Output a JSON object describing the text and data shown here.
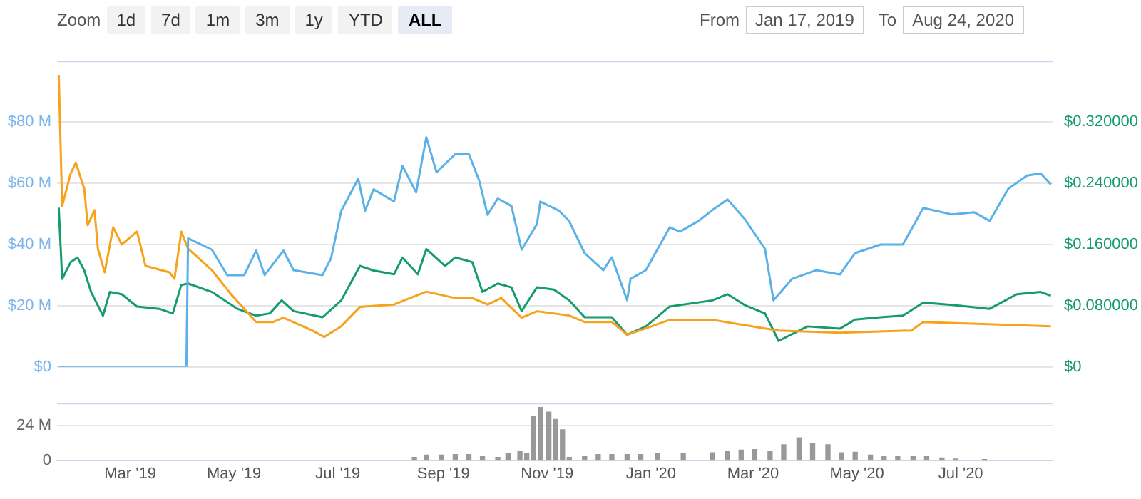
{
  "chart_data": [
    {
      "type": "line",
      "annotations": [
        "Zoom",
        "1d",
        "7d",
        "1m",
        "3m",
        "1y",
        "YTD",
        "ALL",
        "From",
        "Jan 17, 2019",
        "To",
        "Aug 24, 2020"
      ],
      "xlim": [
        "2019-01-17",
        "2020-08-24"
      ],
      "xticks": [
        {
          "value": "2019-03-01",
          "label": null
        },
        {
          "value": "2019-05-01",
          "label": null
        },
        {
          "value": "2019-07-01",
          "label": null
        },
        {
          "value": "2019-09-01",
          "label": null
        },
        {
          "value": "2019-11-01",
          "label": null
        },
        {
          "value": "2020-01-01",
          "label": null
        },
        {
          "value": "2020-03-01",
          "label": null
        },
        {
          "value": "2020-05-01",
          "label": null
        },
        {
          "value": "2020-07-01",
          "label": null
        }
      ],
      "ylim": [
        0,
        100
      ],
      "yticks": [
        {
          "value": 0,
          "label": "$0"
        },
        {
          "value": 20,
          "label": "$20 M"
        },
        {
          "value": 40,
          "label": "$40 M"
        },
        {
          "value": 60,
          "label": "$60 M"
        },
        {
          "value": 80,
          "label": "$80 M"
        }
      ],
      "y2lim": [
        0,
        0.4
      ],
      "y2ticks": [
        {
          "value": 0,
          "label": "$0"
        },
        {
          "value": 0.08,
          "label": "$0.080000"
        },
        {
          "value": 0.16,
          "label": "$0.160000"
        },
        {
          "value": 0.24,
          "label": "$0.240000"
        },
        {
          "value": 0.32,
          "label": "$0.320000"
        }
      ],
      "grid": "y",
      "legend": false,
      "marker": "none",
      "line_style": "solid",
      "tick_labels": "y",
      "series": [
        {
          "color": "#5ab1e8",
          "x": [
            "2019-01-18",
            "2019-04-03",
            "2019-04-04",
            "2019-04-18",
            "2019-04-27",
            "2019-05-07",
            "2019-05-14",
            "2019-05-19",
            "2019-05-30",
            "2019-06-05",
            "2019-06-22",
            "2019-06-27",
            "2019-07-03",
            "2019-07-13",
            "2019-07-17",
            "2019-07-22",
            "2019-08-03",
            "2019-08-08",
            "2019-08-16",
            "2019-08-22",
            "2019-08-28",
            "2019-09-08",
            "2019-09-16",
            "2019-09-22",
            "2019-09-27",
            "2019-10-03",
            "2019-10-11",
            "2019-10-17",
            "2019-10-26",
            "2019-10-28",
            "2019-11-08",
            "2019-11-14",
            "2019-11-23",
            "2019-12-04",
            "2019-12-09",
            "2019-12-18",
            "2019-12-20",
            "2019-12-29",
            "2020-01-12",
            "2020-01-18",
            "2020-01-29",
            "2020-02-06",
            "2020-02-15",
            "2020-02-25",
            "2020-03-08",
            "2020-03-13",
            "2020-03-24",
            "2020-04-07",
            "2020-04-21",
            "2020-04-30",
            "2020-05-15",
            "2020-05-28",
            "2020-06-09",
            "2020-06-26",
            "2020-07-09",
            "2020-07-18",
            "2020-07-29",
            "2020-08-09",
            "2020-08-17",
            "2020-08-23"
          ],
          "values": [
            0,
            0,
            42,
            38.3,
            30,
            30,
            38,
            30,
            38,
            31.6,
            30,
            35.5,
            51,
            61.5,
            51,
            58,
            54,
            65.7,
            57,
            75,
            63.6,
            69.5,
            69.5,
            61,
            49.7,
            55,
            52.6,
            38.3,
            46.7,
            54,
            51,
            47.6,
            37.2,
            31.6,
            35.8,
            21.8,
            28.8,
            31.6,
            45.6,
            44.2,
            47.7,
            51.2,
            54.7,
            48.4,
            38.6,
            21.8,
            28.8,
            31.6,
            30.2,
            37.2,
            40,
            40,
            51.9,
            49.8,
            50.5,
            47.7,
            58.2,
            62.5,
            63.2,
            59.6
          ]
        },
        {
          "color": "#f7a21b",
          "x": [
            "2019-01-18",
            "2019-01-20",
            "2019-01-25",
            "2019-01-28",
            "2019-02-02",
            "2019-02-04",
            "2019-02-08",
            "2019-02-10",
            "2019-02-14",
            "2019-02-19",
            "2019-02-24",
            "2019-03-05",
            "2019-03-10",
            "2019-03-24",
            "2019-03-27",
            "2019-03-31",
            "2019-04-04",
            "2019-04-18",
            "2019-04-29",
            "2019-05-14",
            "2019-05-24",
            "2019-05-30",
            "2019-06-16",
            "2019-06-23",
            "2019-07-03",
            "2019-07-14",
            "2019-08-03",
            "2019-08-22",
            "2019-09-08",
            "2019-09-18",
            "2019-09-27",
            "2019-10-05",
            "2019-10-17",
            "2019-10-26",
            "2019-11-14",
            "2019-11-23",
            "2019-12-09",
            "2019-12-18",
            "2019-12-29",
            "2020-01-12",
            "2020-02-06",
            "2020-03-08",
            "2020-03-16",
            "2020-04-21",
            "2020-06-02",
            "2020-06-09",
            "2020-07-17",
            "2020-08-23"
          ],
          "values": [
            95.4,
            52.6,
            63.2,
            66.7,
            58.2,
            46.3,
            51.2,
            38.6,
            30.9,
            45.6,
            40,
            44.2,
            33,
            30.9,
            28.8,
            44.2,
            38.6,
            31.6,
            23.9,
            14.7,
            14.7,
            16.1,
            11.9,
            9.8,
            13.3,
            19.6,
            20.4,
            24.6,
            22.5,
            22.5,
            20.4,
            22.5,
            16.1,
            18.2,
            16.8,
            14.7,
            14.7,
            10.5,
            12.6,
            15.4,
            15.4,
            12.6,
            11.9,
            11.2,
            11.9,
            14.7,
            14,
            13.3
          ]
        },
        {
          "color": "#159b6c",
          "axis": "y2",
          "x": [
            "2019-01-18",
            "2019-01-20",
            "2019-01-25",
            "2019-01-29",
            "2019-02-02",
            "2019-02-06",
            "2019-02-13",
            "2019-02-17",
            "2019-02-24",
            "2019-03-05",
            "2019-03-18",
            "2019-03-26",
            "2019-03-31",
            "2019-04-04",
            "2019-04-18",
            "2019-05-03",
            "2019-05-14",
            "2019-05-22",
            "2019-05-29",
            "2019-06-05",
            "2019-06-22",
            "2019-07-03",
            "2019-07-14",
            "2019-07-22",
            "2019-08-03",
            "2019-08-08",
            "2019-08-17",
            "2019-08-22",
            "2019-09-02",
            "2019-09-08",
            "2019-09-18",
            "2019-09-24",
            "2019-10-03",
            "2019-10-11",
            "2019-10-17",
            "2019-10-26",
            "2019-11-05",
            "2019-11-14",
            "2019-11-23",
            "2019-12-09",
            "2019-12-18",
            "2019-12-29",
            "2020-01-12",
            "2020-02-06",
            "2020-02-15",
            "2020-02-25",
            "2020-03-08",
            "2020-03-16",
            "2020-04-02",
            "2020-04-21",
            "2020-04-30",
            "2020-05-15",
            "2020-05-28",
            "2020-06-09",
            "2020-06-26",
            "2020-07-18",
            "2020-08-03",
            "2020-08-17",
            "2020-08-23"
          ],
          "values": [
            0.208,
            0.115,
            0.137,
            0.143,
            0.126,
            0.098,
            0.067,
            0.098,
            0.095,
            0.079,
            0.076,
            0.07,
            0.107,
            0.109,
            0.098,
            0.076,
            0.067,
            0.07,
            0.087,
            0.073,
            0.065,
            0.087,
            0.132,
            0.126,
            0.121,
            0.143,
            0.121,
            0.154,
            0.132,
            0.143,
            0.137,
            0.098,
            0.109,
            0.104,
            0.073,
            0.104,
            0.101,
            0.087,
            0.065,
            0.065,
            0.042,
            0.053,
            0.079,
            0.087,
            0.095,
            0.081,
            0.07,
            0.034,
            0.053,
            0.05,
            0.062,
            0.065,
            0.067,
            0.084,
            0.081,
            0.076,
            0.095,
            0.098,
            0.093
          ]
        }
      ]
    },
    {
      "type": "bar",
      "xlim": [
        "2019-01-17",
        "2020-08-24"
      ],
      "xticks": [
        {
          "value": "2019-03-01",
          "label": "Mar '19"
        },
        {
          "value": "2019-05-01",
          "label": "May '19"
        },
        {
          "value": "2019-07-01",
          "label": "Jul '19"
        },
        {
          "value": "2019-09-01",
          "label": "Sep '19"
        },
        {
          "value": "2019-11-01",
          "label": "Nov '19"
        },
        {
          "value": "2020-01-01",
          "label": "Jan '20"
        },
        {
          "value": "2020-03-01",
          "label": "Mar '20"
        },
        {
          "value": "2020-05-01",
          "label": "May '20"
        },
        {
          "value": "2020-07-01",
          "label": "Jul '20"
        }
      ],
      "ylim": [
        0,
        40
      ],
      "yticks": [
        {
          "value": 0,
          "label": "0"
        },
        {
          "value": 24,
          "label": "24 M"
        }
      ],
      "grid": "y",
      "legend": false,
      "series": [
        {
          "color": "#999999",
          "x": [
            "2019-08-15",
            "2019-08-22",
            "2019-08-31",
            "2019-09-08",
            "2019-09-16",
            "2019-09-24",
            "2019-10-03",
            "2019-10-09",
            "2019-10-16",
            "2019-10-20",
            "2019-10-24",
            "2019-10-28",
            "2019-11-02",
            "2019-11-06",
            "2019-11-10",
            "2019-11-14",
            "2019-11-23",
            "2019-12-01",
            "2019-12-09",
            "2019-12-18",
            "2019-12-26",
            "2020-01-05",
            "2020-01-20",
            "2020-02-06",
            "2020-02-15",
            "2020-02-23",
            "2020-03-02",
            "2020-03-11",
            "2020-03-19",
            "2020-03-28",
            "2020-04-05",
            "2020-04-14",
            "2020-04-22",
            "2020-04-30",
            "2020-05-09",
            "2020-05-17",
            "2020-05-25",
            "2020-06-03",
            "2020-06-11",
            "2020-06-20",
            "2020-06-28",
            "2020-07-15"
          ],
          "values": [
            2,
            3.6,
            3.6,
            4,
            4,
            2.6,
            2,
            5,
            6,
            4.4,
            30.8,
            36.8,
            33.6,
            28.4,
            21.2,
            2,
            3,
            4,
            4,
            4,
            4,
            5,
            4.4,
            5.2,
            6,
            7,
            7.4,
            6.4,
            10.8,
            15.6,
            11.6,
            10.8,
            5.2,
            5.6,
            3.6,
            2.8,
            2.8,
            2.8,
            2.8,
            1.6,
            0.8,
            0.4
          ]
        }
      ]
    }
  ]
}
